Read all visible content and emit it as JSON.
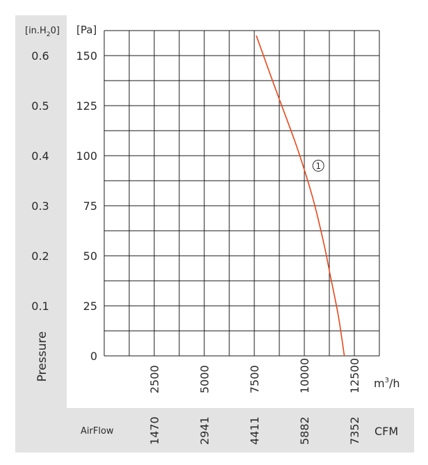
{
  "chart_data": {
    "type": "line",
    "left_axis_unit": "[in.H",
    "left_axis_unit_sub": "2",
    "left_axis_unit_end": "0]",
    "left_axis_ticks": [
      "0.6",
      "0.5",
      "0.4",
      "0.3",
      "0.2",
      "0.1"
    ],
    "left_axis_tick_pa": [
      150,
      125,
      100,
      75,
      50,
      25
    ],
    "ylabel": "Pressure",
    "y_unit": "[Pa]",
    "y_ticks": [
      0,
      25,
      50,
      75,
      100,
      125,
      150
    ],
    "ylim": [
      0,
      162.5
    ],
    "x_unit": "m",
    "x_unit_sup": "3",
    "x_unit_end": "/h",
    "x_ticks": [
      2500,
      5000,
      7500,
      10000,
      12500
    ],
    "xlim": [
      0,
      13750
    ],
    "cfm_label": "AirFlow",
    "cfm_unit": "CFM",
    "cfm_ticks": [
      "1470",
      "2941",
      "4411",
      "5882",
      "7352"
    ],
    "grid": true,
    "series": [
      {
        "marker": "1",
        "marker_at": {
          "x": 10700,
          "y": 95
        },
        "color": "#e8471c",
        "points": [
          [
            7600,
            160
          ],
          [
            8500,
            135
          ],
          [
            9500,
            108
          ],
          [
            10000,
            93
          ],
          [
            10500,
            76
          ],
          [
            11000,
            55
          ],
          [
            11300,
            40
          ],
          [
            11700,
            20
          ],
          [
            12000,
            0
          ]
        ]
      }
    ]
  }
}
